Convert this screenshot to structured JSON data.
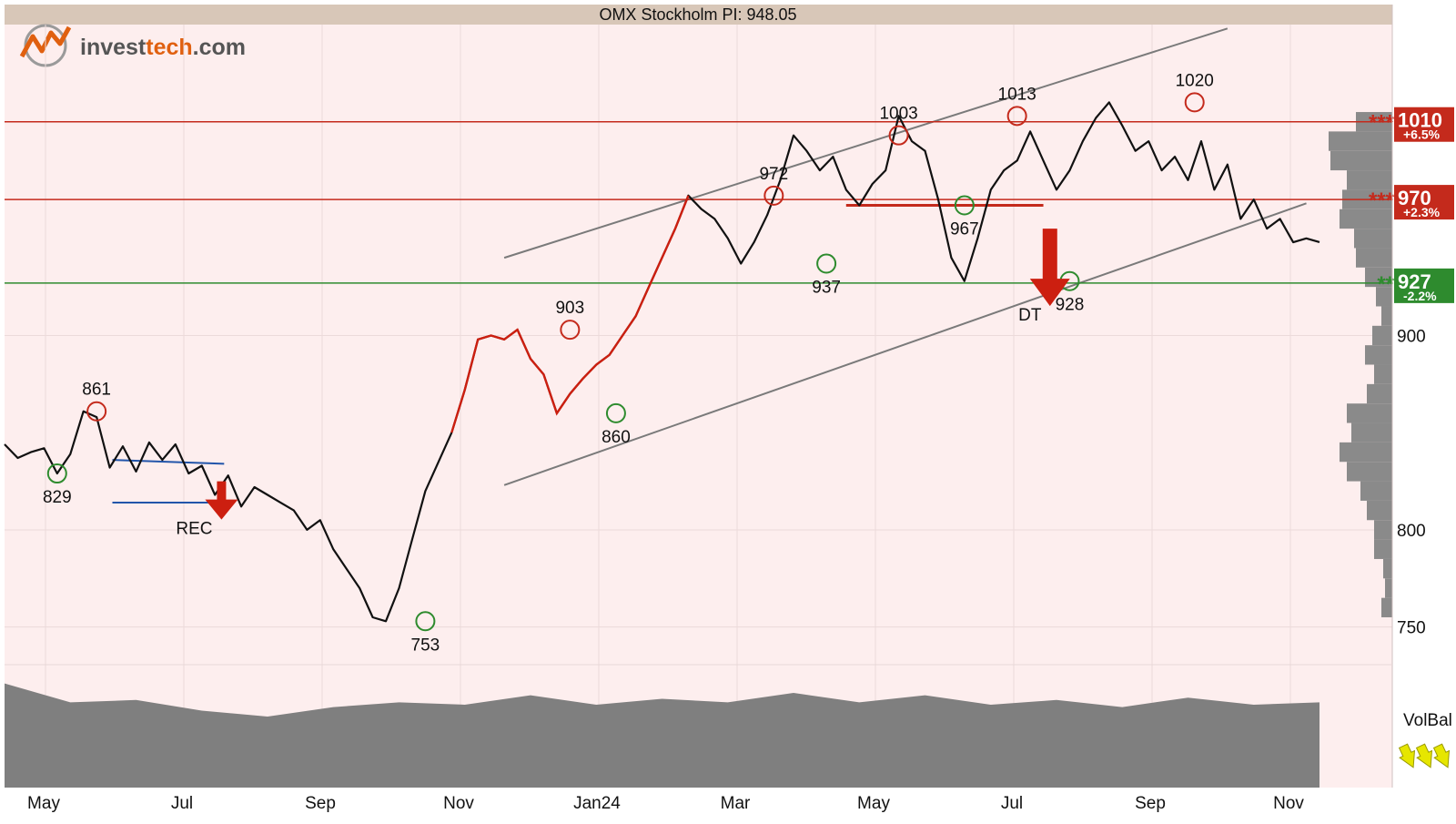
{
  "header": {
    "title": "OMX Stockholm PI: 948.05"
  },
  "logo": {
    "brand_main": "invest",
    "brand_accent": "tech",
    "brand_suffix": ".com"
  },
  "colors": {
    "plot_bg": "#fdeeee",
    "header_bg": "#d8c7b8",
    "price_line": "#111111",
    "price_up_segment": "#cc1f10",
    "resistance": "#c42a1c",
    "support": "#2e8b2e",
    "trend_channel": "#7a7a7a",
    "rect_lines": "#2255aa",
    "signal_arrow": "#cc1f10",
    "volume_fill": "#7f7f7f",
    "volume_profile_fill": "#8a8a8a",
    "volbal_arrows": "#e6e600"
  },
  "chart_data": {
    "type": "line",
    "title": "OMX Stockholm PI: 948.05",
    "x_ticks": [
      "May",
      "Jul",
      "Sep",
      "Nov",
      "Jan24",
      "Mar",
      "May",
      "Jul",
      "Sep",
      "Nov"
    ],
    "y_ticks": [
      750,
      800,
      900
    ],
    "ylim": [
      740,
      1060
    ],
    "grid": true,
    "price_series": {
      "name": "OMX Stockholm PI",
      "x": [
        0.0,
        0.01,
        0.02,
        0.03,
        0.04,
        0.05,
        0.06,
        0.07,
        0.08,
        0.09,
        0.1,
        0.11,
        0.12,
        0.13,
        0.14,
        0.15,
        0.16,
        0.17,
        0.18,
        0.19,
        0.2,
        0.21,
        0.22,
        0.23,
        0.24,
        0.25,
        0.26,
        0.27,
        0.28,
        0.29,
        0.3,
        0.31,
        0.32,
        0.33,
        0.34,
        0.35,
        0.36,
        0.37,
        0.38,
        0.39,
        0.4,
        0.41,
        0.42,
        0.43,
        0.44,
        0.45,
        0.46,
        0.47,
        0.48,
        0.49,
        0.5,
        0.51,
        0.52,
        0.53,
        0.54,
        0.55,
        0.56,
        0.57,
        0.58,
        0.59,
        0.6,
        0.61,
        0.62,
        0.63,
        0.64,
        0.65,
        0.66,
        0.67,
        0.68,
        0.69,
        0.7,
        0.71,
        0.72,
        0.73,
        0.74,
        0.75,
        0.76,
        0.77,
        0.78,
        0.79,
        0.8,
        0.81,
        0.82,
        0.83,
        0.84,
        0.85,
        0.86,
        0.87,
        0.88,
        0.89,
        0.9,
        0.91,
        0.92,
        0.93,
        0.94,
        0.95,
        0.96,
        0.97,
        0.98,
        0.99,
        1.0
      ],
      "values": [
        844,
        837,
        840,
        842,
        829,
        839,
        861,
        858,
        832,
        843,
        830,
        845,
        836,
        844,
        829,
        833,
        818,
        828,
        812,
        822,
        818,
        814,
        810,
        800,
        805,
        790,
        780,
        770,
        755,
        753,
        770,
        795,
        820,
        835,
        850,
        872,
        898,
        900,
        898,
        903,
        888,
        880,
        860,
        870,
        878,
        885,
        890,
        900,
        910,
        925,
        940,
        955,
        972,
        965,
        960,
        950,
        937,
        948,
        962,
        980,
        1003,
        995,
        985,
        992,
        975,
        967,
        978,
        985,
        1013,
        1000,
        995,
        970,
        940,
        928,
        950,
        975,
        985,
        990,
        1005,
        990,
        975,
        985,
        1000,
        1012,
        1020,
        1008,
        995,
        1000,
        985,
        992,
        980,
        1000,
        975,
        988,
        960,
        970,
        955,
        960,
        948,
        950,
        948.05
      ]
    },
    "volume_series": {
      "name": "Volume",
      "x": [
        0.0,
        0.05,
        0.1,
        0.15,
        0.2,
        0.25,
        0.3,
        0.35,
        0.4,
        0.45,
        0.5,
        0.55,
        0.6,
        0.65,
        0.7,
        0.75,
        0.8,
        0.85,
        0.9,
        0.95,
        1.0
      ],
      "values": [
        0.88,
        0.72,
        0.74,
        0.65,
        0.6,
        0.68,
        0.72,
        0.7,
        0.78,
        0.7,
        0.75,
        0.72,
        0.8,
        0.72,
        0.78,
        0.7,
        0.74,
        0.68,
        0.76,
        0.7,
        0.72
      ]
    },
    "annotations": [
      {
        "label": "861",
        "x": 0.07,
        "value": 861,
        "kind": "top"
      },
      {
        "label": "829",
        "x": 0.04,
        "value": 829,
        "kind": "bottom"
      },
      {
        "label": "753",
        "x": 0.32,
        "value": 753,
        "kind": "bottom"
      },
      {
        "label": "903",
        "x": 0.43,
        "value": 903,
        "kind": "top"
      },
      {
        "label": "860",
        "x": 0.465,
        "value": 860,
        "kind": "bottom"
      },
      {
        "label": "972",
        "x": 0.585,
        "value": 972,
        "kind": "top"
      },
      {
        "label": "937",
        "x": 0.625,
        "value": 937,
        "kind": "bottom"
      },
      {
        "label": "1003",
        "x": 0.68,
        "value": 1003,
        "kind": "top"
      },
      {
        "label": "967",
        "x": 0.73,
        "value": 967,
        "kind": "bottom"
      },
      {
        "label": "1013",
        "x": 0.77,
        "value": 1013,
        "kind": "top"
      },
      {
        "label": "928",
        "x": 0.81,
        "value": 928,
        "kind": "bottom"
      },
      {
        "label": "1020",
        "x": 0.905,
        "value": 1020,
        "kind": "top"
      }
    ],
    "signals": [
      {
        "label": "REC",
        "x": 0.165,
        "value": 825
      },
      {
        "label": "DT",
        "x": 0.795,
        "value": 955
      }
    ],
    "levels": [
      {
        "value": 1010,
        "label": "1010",
        "pct": "+6.5%",
        "stars": "***",
        "type": "resistance"
      },
      {
        "value": 970,
        "label": "970",
        "pct": "+2.3%",
        "stars": "***",
        "type": "resistance"
      },
      {
        "value": 927,
        "label": "927",
        "pct": "-2.2%",
        "stars": "**",
        "type": "support"
      }
    ],
    "indicator_label": "VolBal"
  }
}
